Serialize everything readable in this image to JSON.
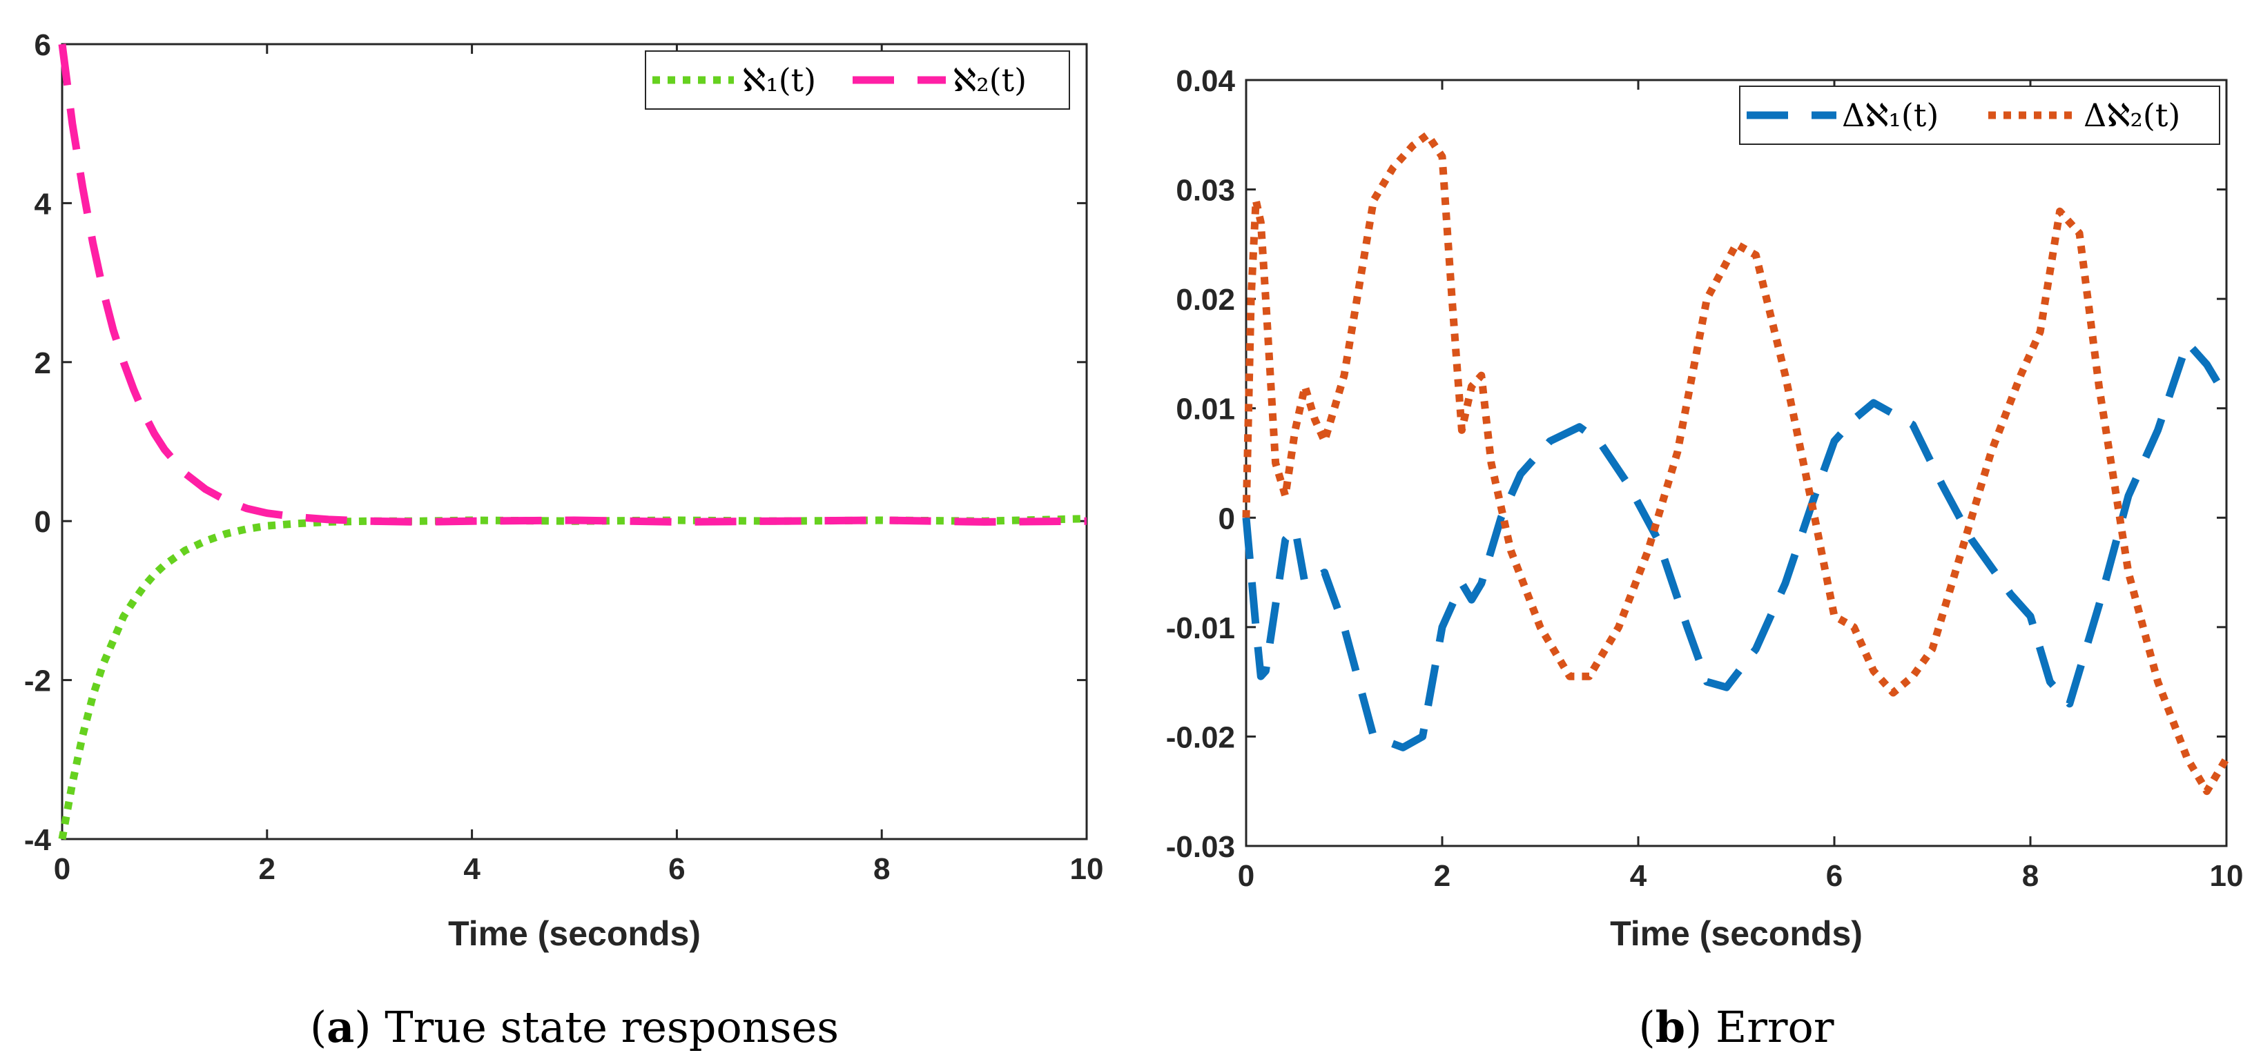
{
  "chart_data": [
    {
      "type": "line",
      "title": "",
      "xlabel": "Time (seconds)",
      "ylabel": "",
      "xlim": [
        0,
        10
      ],
      "ylim": [
        -4,
        6
      ],
      "xticks": [
        "0",
        "2",
        "4",
        "6",
        "8",
        "10"
      ],
      "yticks": [
        "-4",
        "-2",
        "0",
        "2",
        "4",
        "6"
      ],
      "legend_position": "top-right",
      "caption": {
        "letter": "a",
        "text": "True state responses"
      },
      "series": [
        {
          "name": "ℵ1(t)",
          "legend_label": "ℵ₁(t)",
          "color": "#66d11f",
          "style": "dotted",
          "x": [
            0,
            0.1,
            0.2,
            0.3,
            0.4,
            0.5,
            0.6,
            0.7,
            0.8,
            0.9,
            1.0,
            1.2,
            1.4,
            1.6,
            1.8,
            2.0,
            2.3,
            2.6,
            3.0,
            3.5,
            4.0,
            5.0,
            6.0,
            7.0,
            8.0,
            9.0,
            10.0
          ],
          "y": [
            -4.0,
            -3.3,
            -2.7,
            -2.2,
            -1.8,
            -1.5,
            -1.2,
            -1.0,
            -0.82,
            -0.67,
            -0.55,
            -0.37,
            -0.25,
            -0.16,
            -0.1,
            -0.06,
            -0.03,
            -0.01,
            0.0,
            0.0,
            0.01,
            0.0,
            0.01,
            0.0,
            0.01,
            0.0,
            0.03
          ]
        },
        {
          "name": "ℵ2(t)",
          "legend_label": "ℵ₂(t)",
          "color": "#ff1fa5",
          "style": "dashed",
          "x": [
            0,
            0.1,
            0.2,
            0.3,
            0.4,
            0.5,
            0.6,
            0.7,
            0.8,
            0.9,
            1.0,
            1.2,
            1.4,
            1.6,
            1.8,
            2.0,
            2.3,
            2.6,
            3.0,
            3.5,
            4.0,
            5.0,
            6.0,
            7.0,
            8.0,
            9.0,
            10.0
          ],
          "y": [
            6.0,
            5.0,
            4.2,
            3.5,
            2.9,
            2.4,
            2.0,
            1.65,
            1.35,
            1.1,
            0.9,
            0.6,
            0.4,
            0.26,
            0.16,
            0.1,
            0.05,
            0.02,
            0.0,
            -0.01,
            0.0,
            0.01,
            -0.01,
            0.0,
            0.01,
            -0.01,
            0.0
          ]
        }
      ]
    },
    {
      "type": "line",
      "title": "",
      "xlabel": "Time (seconds)",
      "ylabel": "",
      "xlim": [
        0,
        10
      ],
      "ylim": [
        -0.03,
        0.04
      ],
      "xticks": [
        "0",
        "2",
        "4",
        "6",
        "8",
        "10"
      ],
      "yticks": [
        "-0.03",
        "-0.02",
        "-0.01",
        "0",
        "0.01",
        "0.02",
        "0.03",
        "0.04"
      ],
      "legend_position": "top-right",
      "caption": {
        "letter": "b",
        "text": "Error"
      },
      "series": [
        {
          "name": "Δℵ1(t)",
          "legend_label": "Δℵ₁(t)",
          "color": "#0b72bd",
          "style": "dashed",
          "x": [
            0,
            0.1,
            0.15,
            0.2,
            0.3,
            0.4,
            0.5,
            0.6,
            0.8,
            1.0,
            1.3,
            1.6,
            1.8,
            2.0,
            2.2,
            2.3,
            2.4,
            2.6,
            2.8,
            3.1,
            3.4,
            3.6,
            3.9,
            4.2,
            4.5,
            4.7,
            4.9,
            5.2,
            5.5,
            5.8,
            6.0,
            6.2,
            6.4,
            6.6,
            6.8,
            7.1,
            7.4,
            7.8,
            8.0,
            8.2,
            8.4,
            8.7,
            9.0,
            9.3,
            9.6,
            9.8,
            10.0
          ],
          "y": [
            0.0,
            -0.01,
            -0.0145,
            -0.014,
            -0.008,
            -0.002,
            -0.001,
            -0.006,
            -0.005,
            -0.01,
            -0.02,
            -0.021,
            -0.02,
            -0.01,
            -0.006,
            -0.0075,
            -0.006,
            0.0,
            0.004,
            0.007,
            0.0083,
            0.007,
            0.003,
            -0.002,
            -0.01,
            -0.015,
            -0.0155,
            -0.012,
            -0.006,
            0.002,
            0.007,
            0.009,
            0.0105,
            0.0095,
            0.0085,
            0.003,
            -0.002,
            -0.007,
            -0.009,
            -0.015,
            -0.017,
            -0.008,
            0.002,
            0.008,
            0.016,
            0.014,
            0.011
          ]
        },
        {
          "name": "Δℵ2(t)",
          "legend_label": "Δℵ₂(t)",
          "color": "#d95319",
          "style": "dotted",
          "x": [
            0,
            0.05,
            0.1,
            0.15,
            0.2,
            0.3,
            0.4,
            0.5,
            0.6,
            0.7,
            0.8,
            1.0,
            1.3,
            1.5,
            1.7,
            1.85,
            2.0,
            2.1,
            2.2,
            2.3,
            2.4,
            2.5,
            2.7,
            3.0,
            3.3,
            3.5,
            3.8,
            4.1,
            4.4,
            4.7,
            5.0,
            5.2,
            5.5,
            5.8,
            6.0,
            6.1,
            6.2,
            6.4,
            6.6,
            6.8,
            7.0,
            7.3,
            7.6,
            7.9,
            8.1,
            8.3,
            8.5,
            8.7,
            9.0,
            9.3,
            9.6,
            9.8,
            10.0
          ],
          "y": [
            0.0,
            0.02,
            0.029,
            0.027,
            0.02,
            0.005,
            0.002,
            0.008,
            0.012,
            0.009,
            0.007,
            0.013,
            0.029,
            0.032,
            0.034,
            0.035,
            0.033,
            0.02,
            0.008,
            0.012,
            0.013,
            0.005,
            -0.003,
            -0.01,
            -0.0145,
            -0.0145,
            -0.01,
            -0.003,
            0.006,
            0.02,
            0.025,
            0.024,
            0.013,
            0.0,
            -0.009,
            -0.0095,
            -0.01,
            -0.014,
            -0.016,
            -0.0145,
            -0.012,
            -0.003,
            0.006,
            0.013,
            0.017,
            0.028,
            0.026,
            0.012,
            -0.005,
            -0.015,
            -0.022,
            -0.025,
            -0.022
          ]
        }
      ]
    }
  ]
}
